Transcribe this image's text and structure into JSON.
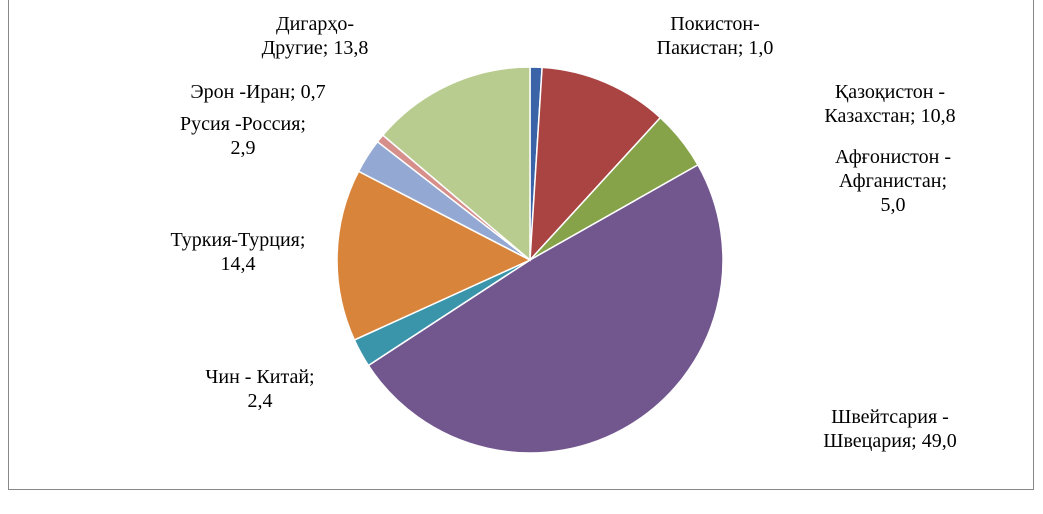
{
  "chart_data": {
    "type": "pie",
    "categories": [
      "Покистон-Пакистан",
      "Қазоқистон - Казахстан",
      "Афғонистон - Афганистан",
      "Швейтсария - Швецария",
      "Чин - Китай",
      "Туркия-Турция",
      "Русия -Россия",
      "Эрон -Иран",
      "Дигарҳо-Другие"
    ],
    "values": [
      1.0,
      10.8,
      5.0,
      49.0,
      2.4,
      14.4,
      2.9,
      0.7,
      13.8
    ],
    "value_labels": [
      "1,0",
      "10,8",
      "5,0",
      "49,0",
      "2,4",
      "14,4",
      "2,9",
      "0,7",
      "13,8"
    ],
    "label_separator": ";",
    "colors": [
      "#3a63a8",
      "#a94442",
      "#86a34a",
      "#72578f",
      "#3a95ab",
      "#d9843b",
      "#93a9d3",
      "#d68f8b",
      "#b8cc8f"
    ]
  }
}
